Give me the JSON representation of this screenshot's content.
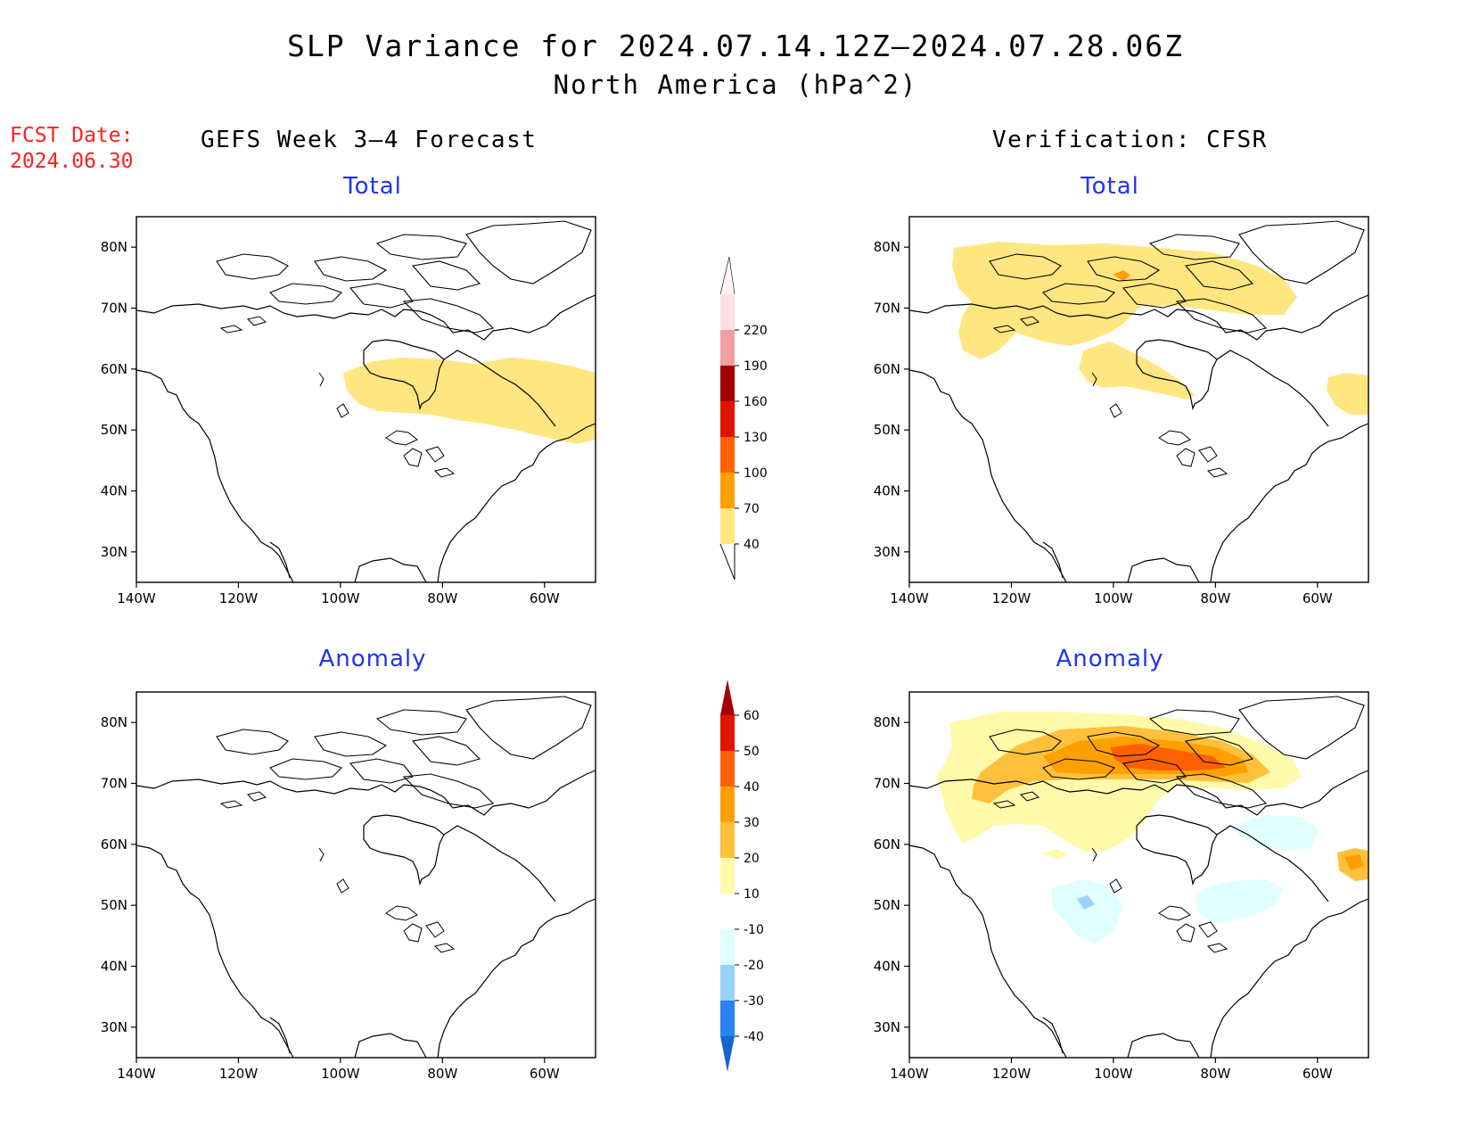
{
  "header": {
    "title": "SLP Variance for 2024.07.14.12Z–2024.07.28.06Z",
    "subtitle": "North America (hPa^2)",
    "fcst_label": "FCST Date:",
    "fcst_date": "2024.06.30"
  },
  "columns": {
    "left": "GEFS Week 3–4 Forecast",
    "right": "Verification: CFSR"
  },
  "panels": {
    "top_left": "Total",
    "top_right": "Total",
    "bottom_left": "Anomaly",
    "bottom_right": "Anomaly"
  },
  "map_axes": {
    "lat_ticks": [
      "30N",
      "40N",
      "50N",
      "60N",
      "70N",
      "80N"
    ],
    "lon_ticks": [
      "140W",
      "120W",
      "100W",
      "80W",
      "60W"
    ],
    "lat_values": [
      30,
      40,
      50,
      60,
      70,
      80
    ],
    "lon_values": [
      -140,
      -120,
      -100,
      -80,
      -60
    ],
    "lon_range": [
      -140,
      -50
    ],
    "lat_range": [
      25,
      85
    ]
  },
  "total_colorbar": {
    "labels": [
      "40",
      "70",
      "100",
      "130",
      "160",
      "190",
      "220"
    ],
    "colors": [
      "#ffe680",
      "#ffa000",
      "#ff6400",
      "#e01400",
      "#a00000",
      "#f0a0a0",
      "#fde0e0"
    ]
  },
  "anomaly_colorbar": {
    "labels": [
      "-40",
      "-30",
      "-20",
      "-10",
      "10",
      "20",
      "30",
      "40",
      "50",
      "60"
    ],
    "colors": [
      "#1464d2",
      "#2882f0",
      "#96d2fa",
      "#e1ffff",
      "#ffffff",
      "#fffaaa",
      "#ffc03c",
      "#ffa000",
      "#ff6000",
      "#e11400",
      "#a50000"
    ]
  },
  "colors": {
    "fcst_text": "#ff2020",
    "panel_title": "#2233ee"
  }
}
